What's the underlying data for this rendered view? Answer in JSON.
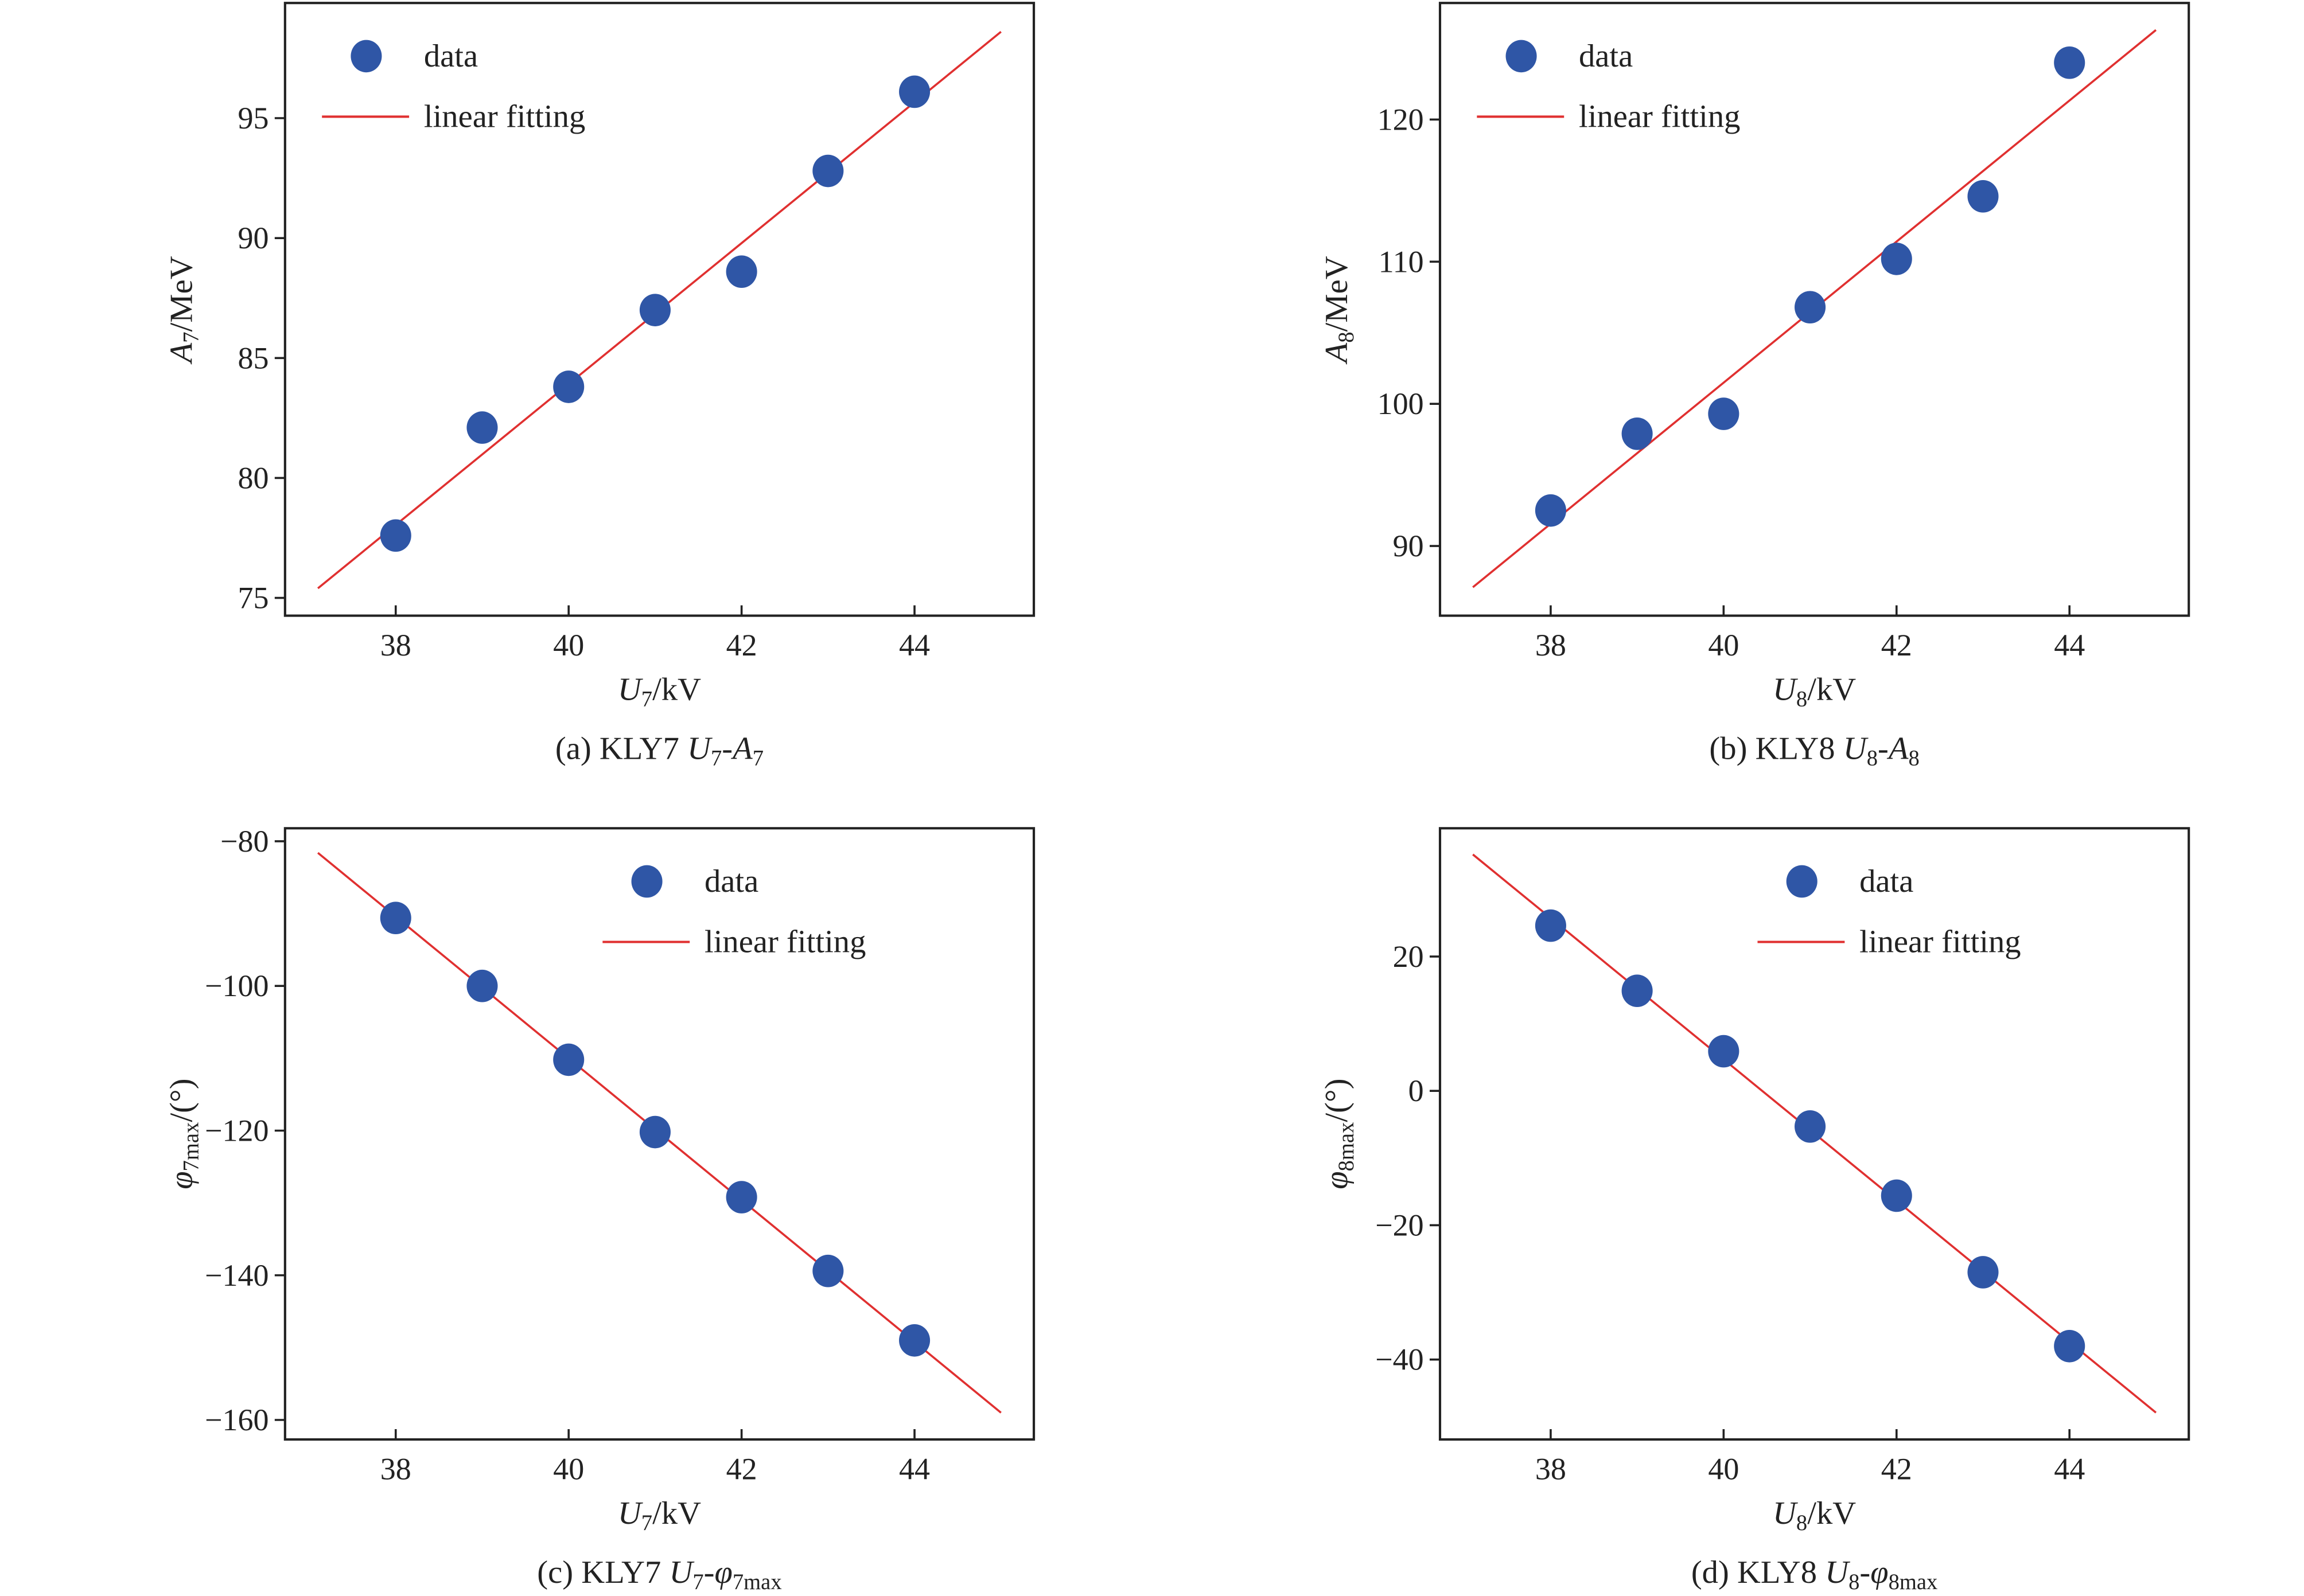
{
  "colors": {
    "data": "#2f56a6",
    "fit": "#e03030",
    "axis": "#222222"
  },
  "chart_data": [
    {
      "type": "scatter",
      "panel": "a",
      "caption": [
        {
          "t": "(a) KLY7 "
        },
        {
          "t": "U",
          "i": true
        },
        {
          "t": "7",
          "sub": true
        },
        {
          "t": "-"
        },
        {
          "t": "A",
          "i": true
        },
        {
          "t": "7",
          "sub": true
        }
      ],
      "xlabel": [
        {
          "t": "U",
          "i": true
        },
        {
          "t": "7",
          "sub": true
        },
        {
          "t": "/kV"
        }
      ],
      "ylabel": [
        {
          "t": "A",
          "i": true
        },
        {
          "t": "7",
          "sub": true
        },
        {
          "t": "/MeV"
        }
      ],
      "xlim": [
        36.72,
        45.38
      ],
      "ylim": [
        74.26,
        99.8
      ],
      "xticks": [
        38,
        40,
        42,
        44
      ],
      "yticks": [
        75,
        80,
        85,
        90,
        95
      ],
      "legend": {
        "placement": "top-left",
        "entries": [
          "data",
          "linear fitting"
        ]
      },
      "series": [
        {
          "name": "data",
          "kind": "scatter",
          "x": [
            38,
            39,
            40,
            41,
            42,
            43,
            44
          ],
          "y": [
            77.6,
            82.1,
            83.8,
            87.0,
            88.6,
            92.8,
            96.1
          ]
        },
        {
          "name": "linear fitting",
          "kind": "line",
          "x": [
            37.1,
            45
          ],
          "y": [
            75.4,
            98.6
          ]
        }
      ]
    },
    {
      "type": "scatter",
      "panel": "b",
      "caption": [
        {
          "t": "(b) KLY8 "
        },
        {
          "t": "U",
          "i": true
        },
        {
          "t": "8",
          "sub": true
        },
        {
          "t": "-"
        },
        {
          "t": "A",
          "i": true
        },
        {
          "t": "8",
          "sub": true
        }
      ],
      "xlabel": [
        {
          "t": "U",
          "i": true
        },
        {
          "t": "8",
          "sub": true
        },
        {
          "t": "/kV"
        }
      ],
      "ylabel": [
        {
          "t": "A",
          "i": true
        },
        {
          "t": "8",
          "sub": true
        },
        {
          "t": "/MeV"
        }
      ],
      "xlim": [
        36.72,
        45.38
      ],
      "ylim": [
        85.1,
        128.2
      ],
      "xticks": [
        38,
        40,
        42,
        44
      ],
      "yticks": [
        90,
        100,
        110,
        120
      ],
      "legend": {
        "placement": "top-left",
        "entries": [
          "data",
          "linear fitting"
        ]
      },
      "series": [
        {
          "name": "data",
          "kind": "scatter",
          "x": [
            38,
            39,
            40,
            41,
            42,
            43,
            44
          ],
          "y": [
            92.5,
            97.9,
            99.3,
            106.8,
            110.2,
            114.6,
            124.0
          ]
        },
        {
          "name": "linear fitting",
          "kind": "line",
          "x": [
            37.1,
            45
          ],
          "y": [
            87.1,
            126.3
          ]
        }
      ]
    },
    {
      "type": "scatter",
      "panel": "c",
      "caption": [
        {
          "t": "(c) KLY7 "
        },
        {
          "t": "U",
          "i": true
        },
        {
          "t": "7",
          "sub": true
        },
        {
          "t": "-"
        },
        {
          "t": "φ",
          "i": true
        },
        {
          "t": "7max",
          "sub": true
        }
      ],
      "xlabel": [
        {
          "t": "U",
          "i": true
        },
        {
          "t": "7",
          "sub": true
        },
        {
          "t": "/kV"
        }
      ],
      "ylabel": [
        {
          "t": "φ",
          "i": true
        },
        {
          "t": "7max",
          "sub": true
        },
        {
          "t": "/(°)"
        }
      ],
      "xlim": [
        36.72,
        45.38
      ],
      "ylim": [
        -162.7,
        -78.2
      ],
      "xticks": [
        38,
        40,
        42,
        44
      ],
      "yticks": [
        -80,
        -100,
        -120,
        -140,
        -160
      ],
      "legend": {
        "placement": "upper-center",
        "entries": [
          "data",
          "linear fitting"
        ]
      },
      "series": [
        {
          "name": "data",
          "kind": "scatter",
          "x": [
            38,
            39,
            40,
            41,
            42,
            43,
            44
          ],
          "y": [
            -90.6,
            -100.0,
            -110.2,
            -120.2,
            -129.2,
            -139.4,
            -149.0
          ]
        },
        {
          "name": "linear fitting",
          "kind": "line",
          "x": [
            37.1,
            45
          ],
          "y": [
            -81.6,
            -159.0
          ]
        }
      ]
    },
    {
      "type": "scatter",
      "panel": "d",
      "caption": [
        {
          "t": "(d) KLY8 "
        },
        {
          "t": "U",
          "i": true
        },
        {
          "t": "8",
          "sub": true
        },
        {
          "t": "-"
        },
        {
          "t": "φ",
          "i": true
        },
        {
          "t": "8max",
          "sub": true
        }
      ],
      "xlabel": [
        {
          "t": "U",
          "i": true
        },
        {
          "t": "8",
          "sub": true
        },
        {
          "t": "/kV"
        }
      ],
      "ylabel": [
        {
          "t": "φ",
          "i": true
        },
        {
          "t": "8max",
          "sub": true
        },
        {
          "t": "/(°)"
        }
      ],
      "xlim": [
        36.72,
        45.38
      ],
      "ylim": [
        -51.9,
        39.1
      ],
      "xticks": [
        38,
        40,
        42,
        44
      ],
      "yticks": [
        20,
        0,
        -20,
        -40
      ],
      "legend": {
        "placement": "upper-center",
        "entries": [
          "data",
          "linear fitting"
        ]
      },
      "series": [
        {
          "name": "data",
          "kind": "scatter",
          "x": [
            38,
            39,
            40,
            41,
            42,
            43,
            44
          ],
          "y": [
            24.6,
            14.9,
            5.9,
            -5.3,
            -15.6,
            -27.0,
            -38.0
          ]
        },
        {
          "name": "linear fitting",
          "kind": "line",
          "x": [
            37.1,
            45
          ],
          "y": [
            35.2,
            -47.9
          ]
        }
      ]
    }
  ]
}
